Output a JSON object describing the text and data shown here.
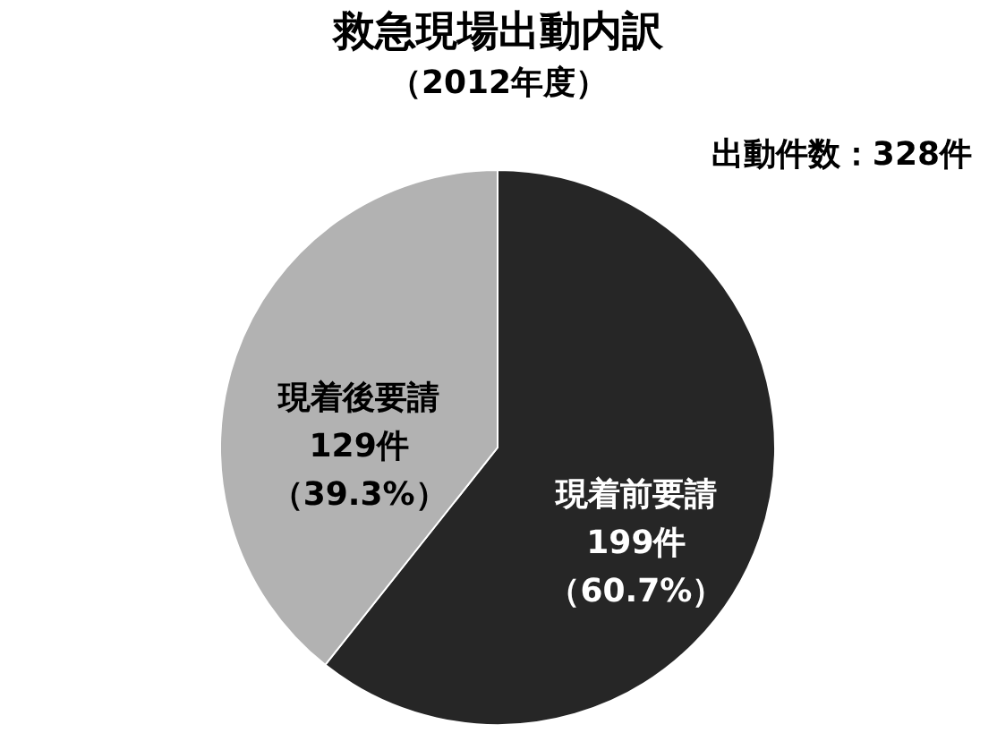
{
  "chart_data": {
    "type": "pie",
    "title": "救急現場出動内訳",
    "subtitle": "（2012年度）",
    "categories": [
      "現着前要請",
      "現着後要請"
    ],
    "values": [
      199,
      129
    ],
    "colors": [
      "#262626",
      "#b2b2b2"
    ],
    "value_labels": [
      "199件（60.7%）",
      "129件（39.3%）"
    ],
    "annotations": [
      "出動件数：328件"
    ]
  }
}
